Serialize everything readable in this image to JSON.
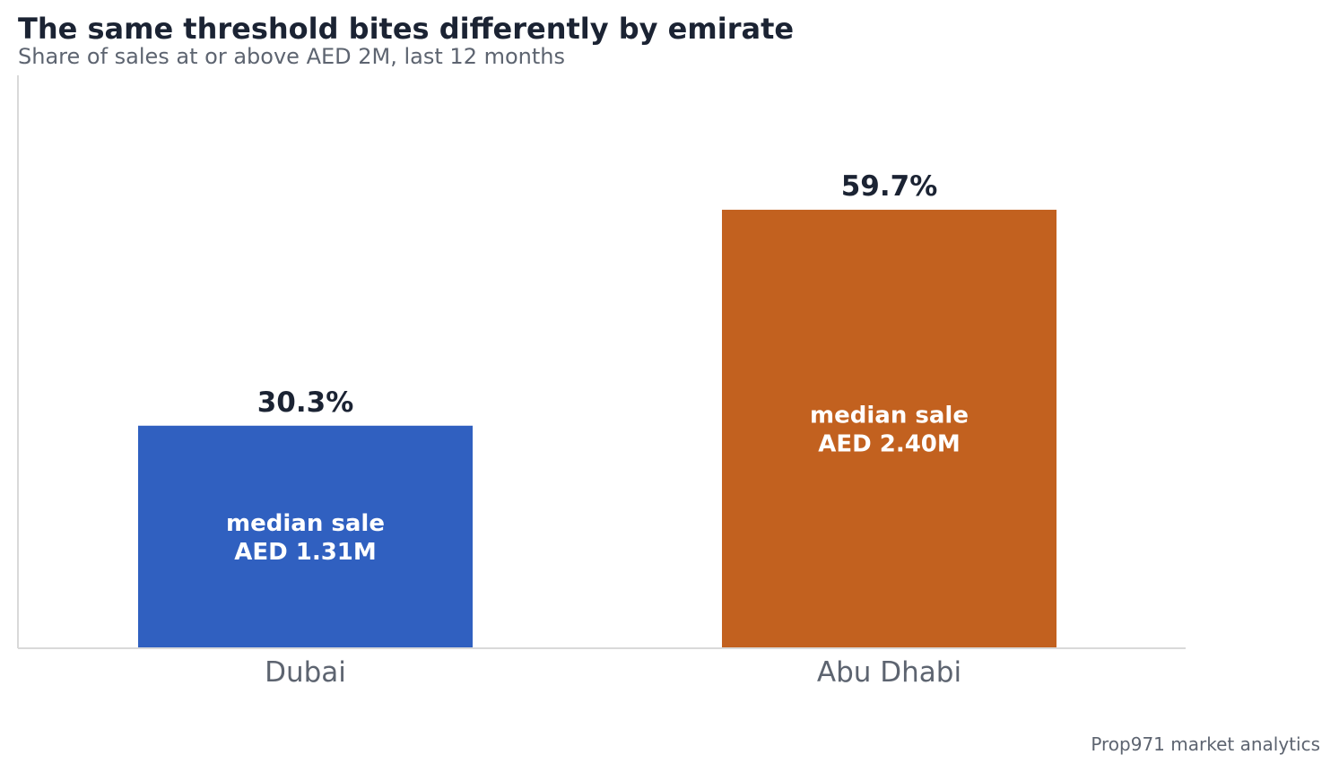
{
  "chart_data": {
    "type": "bar",
    "title": "The same threshold bites differently by emirate",
    "subtitle": "Share of sales at or above AED 2M, last 12 months",
    "categories": [
      "Dubai",
      "Abu Dhabi"
    ],
    "values": [
      30.3,
      59.7
    ],
    "value_labels": [
      "30.3%",
      "59.7%"
    ],
    "bar_annotations": [
      [
        "median sale",
        "AED 1.31M"
      ],
      [
        "median sale",
        "AED 2.40M"
      ]
    ],
    "colors": [
      "#3060c0",
      "#c2611f"
    ],
    "ylim": [
      0,
      78
    ],
    "grid": false,
    "legend": "none",
    "xlabel": "",
    "ylabel": ""
  },
  "footer": {
    "source": "Prop971 market analytics"
  },
  "colors": {
    "title": "#1b2333",
    "muted": "#5d6470",
    "axis": "#d9d9d9",
    "bar_text": "#ffffff"
  }
}
